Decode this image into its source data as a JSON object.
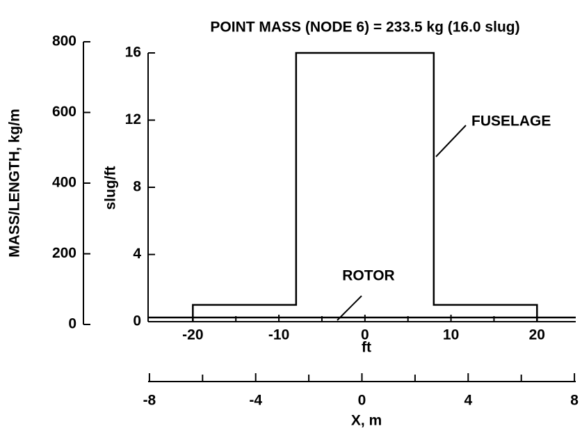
{
  "chart_data": {
    "type": "line",
    "title": "POINT MASS (NODE 6) = 233.5 kg (16.0 slug)",
    "xlabel": "ft",
    "ylabel": "slug/ft",
    "y2label": "MASS/LENGTH, kg/m",
    "x2label": "X, m",
    "xlim": [
      -25.2,
      24.5
    ],
    "xticks": [
      -20,
      -10,
      0,
      10,
      20
    ],
    "xminorticks": [
      -15,
      -5,
      5,
      15
    ],
    "ylim": [
      0,
      16
    ],
    "yticks": [
      0,
      4,
      8,
      12,
      16
    ],
    "y2lim": [
      0,
      800
    ],
    "y2ticks": [
      0,
      200,
      400,
      600,
      800
    ],
    "x2lim": [
      -8.05,
      8.05
    ],
    "x2ticks": [
      -8,
      -4,
      0,
      4,
      8
    ],
    "x2minorticks": [
      -6,
      -2,
      2,
      6
    ],
    "series": [
      {
        "name": "FUSELAGE",
        "color": "#000000",
        "x": [
          -20,
          -20,
          -8,
          -8,
          8,
          8,
          20,
          20
        ],
        "values": [
          0,
          1,
          1,
          16,
          16,
          1,
          1,
          0
        ]
      },
      {
        "name": "ROTOR",
        "color": "#000000",
        "x": [
          -25.2,
          24.5
        ],
        "values": [
          0.25,
          0.25
        ]
      }
    ]
  }
}
